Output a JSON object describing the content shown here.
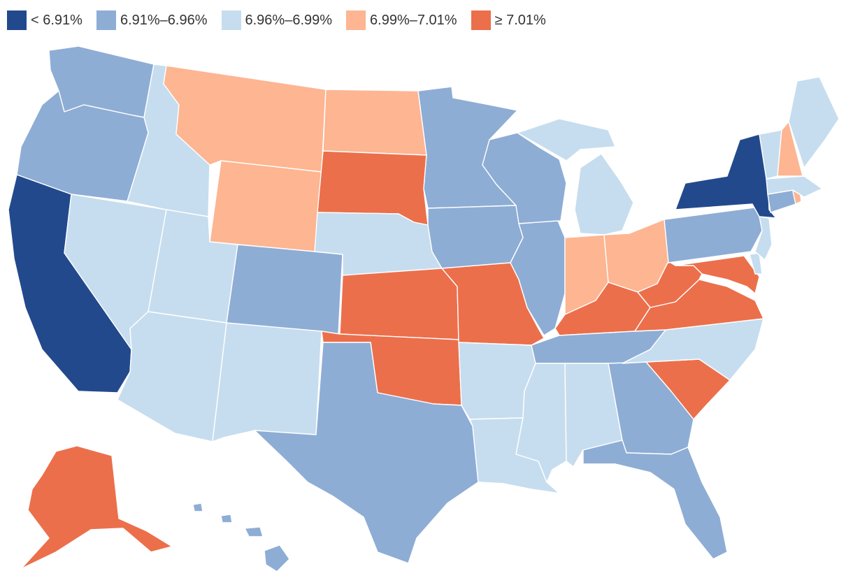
{
  "legend": [
    {
      "label": "< 6.91%",
      "color": "#23498d"
    },
    {
      "label": "6.91%–6.96%",
      "color": "#8eadd5"
    },
    {
      "label": "6.96%–6.99%",
      "color": "#c6ddef"
    },
    {
      "label": "6.99%–7.01%",
      "color": "#fdb592"
    },
    {
      "label": "≥ 7.01%",
      "color": "#ec6f4b"
    }
  ],
  "states": {
    "WA": 1,
    "OR": 1,
    "CA": 0,
    "NV": 2,
    "ID": 2,
    "MT": 3,
    "WY": 3,
    "UT": 2,
    "AZ": 2,
    "CO": 1,
    "NM": 2,
    "ND": 3,
    "SD": 4,
    "NE": 2,
    "KS": 4,
    "OK": 4,
    "TX": 1,
    "MN": 1,
    "IA": 1,
    "MO": 4,
    "AR": 2,
    "LA": 2,
    "WI": 1,
    "IL": 1,
    "MS": 2,
    "MI": 2,
    "IN": 3,
    "OH": 3,
    "KY": 4,
    "TN": 1,
    "AL": 2,
    "GA": 1,
    "FL": 1,
    "SC": 4,
    "NC": 2,
    "VA": 4,
    "WV": 4,
    "MD": 4,
    "DE": 2,
    "PA": 1,
    "NJ": 2,
    "NY": 0,
    "CT": 1,
    "RI": 3,
    "MA": 2,
    "VT": 2,
    "NH": 3,
    "ME": 2,
    "AK": 4,
    "HI": 1
  }
}
